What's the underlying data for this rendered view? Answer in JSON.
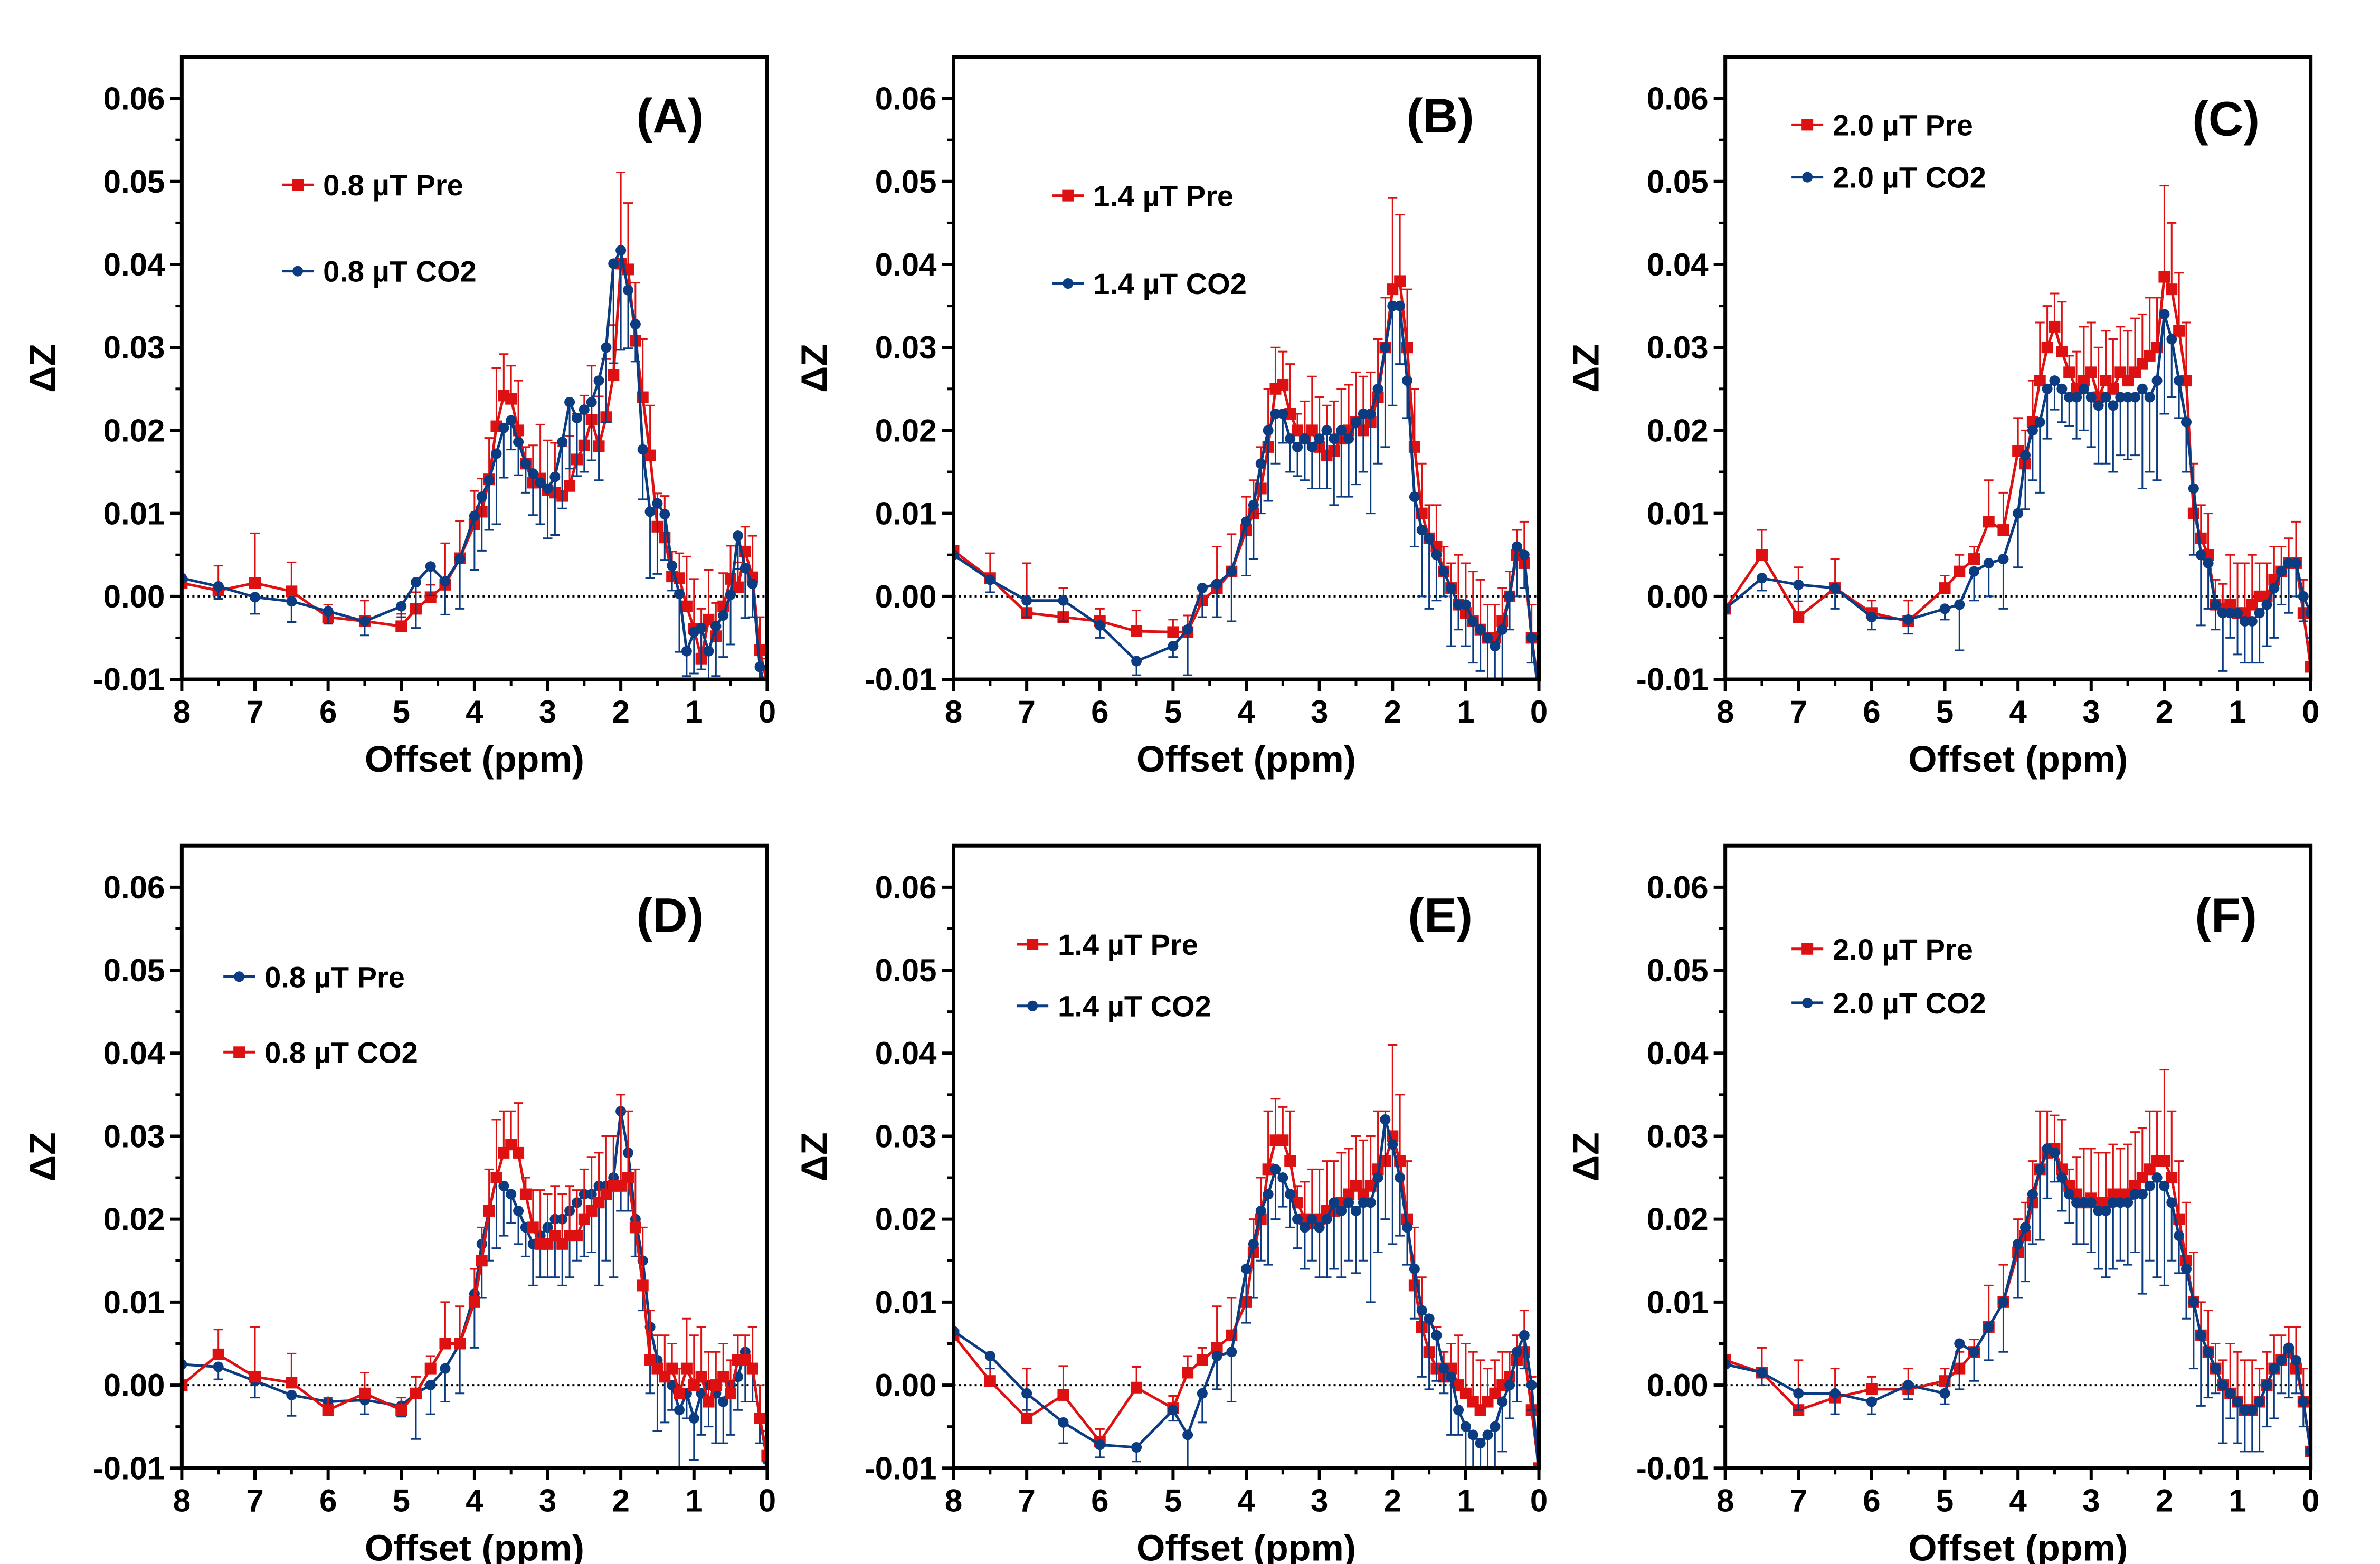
{
  "chart_data": [
    {
      "type": "line",
      "panel_label": "(A)",
      "xlabel": "Offset (ppm)",
      "ylabel": "ΔZ",
      "xlim": [
        8,
        0
      ],
      "ylim": [
        -0.01,
        0.065
      ],
      "x_ticks": [
        "8",
        "7",
        "6",
        "5",
        "4",
        "3",
        "2",
        "1",
        "0"
      ],
      "y_ticks": [
        "0.06",
        "0.05",
        "0.04",
        "0.03",
        "0.02",
        "0.01",
        "0.00",
        "-0.01"
      ],
      "zero_line": "dotted",
      "grid": false,
      "series": [
        {
          "name": "0.8 µT Pre",
          "color": "#dd1111",
          "marker": "square",
          "error_direction": "up",
          "y": [
            0.0016,
            0.0007,
            0.0016,
            0.0006,
            -0.0025,
            -0.003,
            -0.0036,
            -0.0015,
            -0.0001,
            0.0014,
            0.0046,
            0.0087,
            0.0102,
            0.0141,
            0.0205,
            0.0242,
            0.0238,
            0.02,
            0.016,
            0.0137,
            0.0142,
            0.0128,
            0.0125,
            0.0121,
            0.0133,
            0.0165,
            0.0182,
            0.0213,
            0.0181,
            0.0216,
            0.0267,
            0.0401,
            0.0394,
            0.0308,
            0.024,
            0.017,
            0.0084,
            0.0071,
            0.0024,
            0.0022,
            -0.0012,
            -0.0039,
            -0.0075,
            -0.0028,
            -0.0048,
            -0.0012,
            0.0021,
            0.0011,
            0.0054,
            0.0023,
            -0.0065,
            -0.0105
          ]
        },
        {
          "name": "0.8 µT CO2",
          "color": "#0b3c82",
          "marker": "circle",
          "error_direction": "down",
          "y": [
            0.0022,
            0.0012,
            -0.0001,
            -0.0006,
            -0.0018,
            -0.003,
            -0.0012,
            0.0017,
            0.0036,
            0.0018,
            0.0045,
            0.0097,
            0.012,
            0.014,
            0.0172,
            0.0203,
            0.0212,
            0.0186,
            0.016,
            0.0148,
            0.0137,
            0.013,
            0.0144,
            0.0186,
            0.0234,
            0.0215,
            0.0225,
            0.0234,
            0.026,
            0.03,
            0.0401,
            0.0417,
            0.0369,
            0.0328,
            0.0177,
            0.0102,
            0.0112,
            0.0099,
            0.0037,
            0.0003,
            -0.0066,
            -0.0043,
            -0.0038,
            -0.0066,
            -0.0036,
            -0.0023,
            0.0002,
            0.0073,
            0.0034,
            0.0015,
            -0.0085,
            -0.012
          ]
        }
      ]
    },
    {
      "type": "line",
      "panel_label": "(B)",
      "xlabel": "Offset (ppm)",
      "ylabel": "ΔZ",
      "xlim": [
        8,
        0
      ],
      "ylim": [
        -0.01,
        0.065
      ],
      "x_ticks": [
        "8",
        "7",
        "6",
        "5",
        "4",
        "3",
        "2",
        "1",
        "0"
      ],
      "y_ticks": [
        "0.06",
        "0.05",
        "0.04",
        "0.03",
        "0.02",
        "0.01",
        "0.00",
        "-0.01"
      ],
      "zero_line": "dotted",
      "grid": false,
      "series": [
        {
          "name": "1.4 µT Pre",
          "color": "#dd1111",
          "marker": "square",
          "error_direction": "up",
          "y": [
            0.0055,
            0.0022,
            -0.002,
            -0.0025,
            -0.003,
            -0.0042,
            -0.0043,
            -0.0043,
            -0.0005,
            0.001,
            0.003,
            0.008,
            0.01,
            0.013,
            0.018,
            0.025,
            0.0255,
            0.022,
            0.02,
            0.019,
            0.02,
            0.018,
            0.017,
            0.0175,
            0.019,
            0.02,
            0.021,
            0.02,
            0.021,
            0.024,
            0.03,
            0.037,
            0.038,
            0.03,
            0.018,
            0.01,
            0.007,
            0.006,
            0.003,
            0.001,
            -0.001,
            -0.002,
            -0.003,
            -0.004,
            -0.005,
            -0.005,
            -0.003,
            0.0,
            0.005,
            0.004,
            -0.005,
            -0.011
          ]
        },
        {
          "name": "1.4 µT CO2",
          "color": "#0b3c82",
          "marker": "circle",
          "error_direction": "down",
          "y": [
            0.005,
            0.002,
            -0.0005,
            -0.0005,
            -0.0035,
            -0.0078,
            -0.006,
            -0.004,
            0.001,
            0.0015,
            0.003,
            0.009,
            0.011,
            0.016,
            0.02,
            0.022,
            0.022,
            0.019,
            0.018,
            0.019,
            0.018,
            0.019,
            0.02,
            0.019,
            0.02,
            0.019,
            0.021,
            0.022,
            0.022,
            0.025,
            0.03,
            0.035,
            0.035,
            0.026,
            0.012,
            0.008,
            0.007,
            0.005,
            0.003,
            0.001,
            -0.001,
            -0.001,
            -0.003,
            -0.004,
            -0.005,
            -0.006,
            -0.004,
            0.0,
            0.006,
            0.005,
            -0.005,
            -0.012
          ]
        }
      ]
    },
    {
      "type": "line",
      "panel_label": "(C)",
      "xlabel": "Offset (ppm)",
      "ylabel": "ΔZ",
      "xlim": [
        8,
        0
      ],
      "ylim": [
        -0.01,
        0.065
      ],
      "x_ticks": [
        "8",
        "7",
        "6",
        "5",
        "4",
        "3",
        "2",
        "1",
        "0"
      ],
      "y_ticks": [
        "0.06",
        "0.05",
        "0.04",
        "0.03",
        "0.02",
        "0.01",
        "0.00",
        "-0.01"
      ],
      "zero_line": "dotted",
      "grid": false,
      "series": [
        {
          "name": "2.0 µT Pre",
          "color": "#dd1111",
          "marker": "square",
          "error_direction": "up",
          "y": [
            -0.0015,
            0.005,
            -0.0025,
            0.001,
            -0.002,
            -0.003,
            0.001,
            0.003,
            0.0045,
            0.009,
            0.008,
            0.0175,
            0.016,
            0.021,
            0.026,
            0.03,
            0.0325,
            0.0295,
            0.027,
            0.025,
            0.026,
            0.027,
            0.024,
            0.026,
            0.025,
            0.027,
            0.026,
            0.027,
            0.028,
            0.029,
            0.03,
            0.0385,
            0.037,
            0.032,
            0.026,
            0.01,
            0.007,
            0.005,
            -0.001,
            -0.0015,
            -0.001,
            -0.002,
            -0.002,
            -0.001,
            0.0,
            0.0,
            0.002,
            0.003,
            0.004,
            0.004,
            -0.002,
            -0.0085
          ]
        },
        {
          "name": "2.0 µT CO2",
          "color": "#0b3c82",
          "marker": "circle",
          "error_direction": "down",
          "y": [
            -0.0015,
            0.0022,
            0.0014,
            0.001,
            -0.0025,
            -0.0028,
            -0.0015,
            -0.001,
            0.003,
            0.004,
            0.0045,
            0.01,
            0.017,
            0.02,
            0.021,
            0.025,
            0.026,
            0.025,
            0.024,
            0.024,
            0.025,
            0.024,
            0.023,
            0.024,
            0.023,
            0.024,
            0.024,
            0.024,
            0.025,
            0.024,
            0.026,
            0.034,
            0.031,
            0.026,
            0.021,
            0.013,
            0.005,
            0.004,
            -0.001,
            -0.002,
            -0.002,
            -0.002,
            -0.003,
            -0.003,
            -0.002,
            -0.001,
            0.001,
            0.003,
            0.004,
            0.004,
            0.0,
            -0.002
          ]
        }
      ]
    },
    {
      "type": "line",
      "panel_label": "(D)",
      "xlabel": "Offset (ppm)",
      "ylabel": "ΔZ",
      "xlim": [
        8,
        0
      ],
      "ylim": [
        -0.01,
        0.065
      ],
      "x_ticks": [
        "8",
        "7",
        "6",
        "5",
        "4",
        "3",
        "2",
        "1",
        "0"
      ],
      "y_ticks": [
        "0.06",
        "0.05",
        "0.04",
        "0.03",
        "0.02",
        "0.01",
        "0.00",
        "-0.01"
      ],
      "zero_line": "dotted",
      "grid": false,
      "series": [
        {
          "name": "0.8 µT Pre",
          "color": "#0b3c82",
          "marker": "circle",
          "error_direction": "down",
          "y": [
            0.0025,
            0.0022,
            0.0005,
            -0.0012,
            -0.002,
            -0.0018,
            -0.0025,
            -0.001,
            0.0,
            0.002,
            0.005,
            0.011,
            0.017,
            0.021,
            0.025,
            0.024,
            0.023,
            0.021,
            0.019,
            0.017,
            0.018,
            0.019,
            0.02,
            0.02,
            0.021,
            0.022,
            0.023,
            0.023,
            0.024,
            0.024,
            0.025,
            0.033,
            0.028,
            0.02,
            0.015,
            0.007,
            0.003,
            0.001,
            0.0,
            -0.003,
            -0.001,
            -0.004,
            -0.001,
            0.0,
            -0.001,
            -0.002,
            0.0,
            0.001,
            0.004,
            0.002,
            -0.004,
            -0.009
          ]
        },
        {
          "name": "0.8 µT CO2",
          "color": "#dd1111",
          "marker": "square",
          "error_direction": "up",
          "y": [
            0.0,
            0.0037,
            0.001,
            0.0003,
            -0.003,
            -0.001,
            -0.003,
            -0.001,
            0.002,
            0.005,
            0.005,
            0.01,
            0.015,
            0.021,
            0.025,
            0.028,
            0.029,
            0.028,
            0.023,
            0.019,
            0.017,
            0.017,
            0.018,
            0.017,
            0.018,
            0.018,
            0.02,
            0.021,
            0.022,
            0.023,
            0.024,
            0.024,
            0.025,
            0.019,
            0.012,
            0.003,
            0.002,
            0.001,
            0.002,
            -0.001,
            0.002,
            0.0,
            0.001,
            -0.002,
            0.0,
            0.001,
            -0.001,
            0.003,
            0.003,
            0.002,
            -0.004,
            -0.0085
          ]
        }
      ]
    },
    {
      "type": "line",
      "panel_label": "(E)",
      "xlabel": "Offset (ppm)",
      "ylabel": "ΔZ",
      "xlim": [
        8,
        0
      ],
      "ylim": [
        -0.01,
        0.065
      ],
      "x_ticks": [
        "8",
        "7",
        "6",
        "5",
        "4",
        "3",
        "2",
        "1",
        "0"
      ],
      "y_ticks": [
        "0.06",
        "0.05",
        "0.04",
        "0.03",
        "0.02",
        "0.01",
        "0.00",
        "-0.01"
      ],
      "zero_line": "dotted",
      "grid": false,
      "series": [
        {
          "name": "1.4 µT Pre",
          "color": "#dd1111",
          "marker": "square",
          "error_direction": "up",
          "y": [
            0.006,
            0.0005,
            -0.004,
            -0.0012,
            -0.0068,
            -0.0003,
            -0.0028,
            0.0015,
            0.003,
            0.0045,
            0.006,
            0.01,
            0.016,
            0.02,
            0.026,
            0.0295,
            0.0295,
            0.027,
            0.022,
            0.02,
            0.0195,
            0.02,
            0.021,
            0.021,
            0.022,
            0.023,
            0.024,
            0.023,
            0.024,
            0.026,
            0.027,
            0.03,
            0.027,
            0.02,
            0.012,
            0.007,
            0.004,
            0.002,
            0.001,
            0.002,
            0.0,
            -0.001,
            -0.002,
            -0.003,
            -0.002,
            -0.001,
            0.0,
            0.001,
            0.003,
            0.004,
            -0.003,
            -0.01
          ]
        },
        {
          "name": "1.4 µT CO2",
          "color": "#0b3c82",
          "marker": "circle",
          "error_direction": "down",
          "y": [
            0.0065,
            0.0035,
            -0.001,
            -0.0045,
            -0.0072,
            -0.0075,
            -0.003,
            -0.006,
            -0.001,
            0.0035,
            0.004,
            0.014,
            0.017,
            0.021,
            0.023,
            0.026,
            0.025,
            0.023,
            0.02,
            0.019,
            0.02,
            0.019,
            0.02,
            0.022,
            0.021,
            0.022,
            0.021,
            0.022,
            0.022,
            0.025,
            0.032,
            0.029,
            0.025,
            0.019,
            0.014,
            0.009,
            0.008,
            0.006,
            0.002,
            0.001,
            -0.003,
            -0.005,
            -0.006,
            -0.007,
            -0.006,
            -0.005,
            -0.002,
            0.0,
            0.004,
            0.006,
            0.0,
            -0.011
          ]
        }
      ]
    },
    {
      "type": "line",
      "panel_label": "(F)",
      "xlabel": "Offset (ppm)",
      "ylabel": "ΔZ",
      "xlim": [
        8,
        0
      ],
      "ylim": [
        -0.01,
        0.065
      ],
      "x_ticks": [
        "8",
        "7",
        "6",
        "5",
        "4",
        "3",
        "2",
        "1",
        "0"
      ],
      "y_ticks": [
        "0.06",
        "0.05",
        "0.04",
        "0.03",
        "0.02",
        "0.01",
        "0.00",
        "-0.01"
      ],
      "zero_line": "dotted",
      "grid": false,
      "series": [
        {
          "name": "2.0 µT Pre",
          "color": "#dd1111",
          "marker": "square",
          "error_direction": "up",
          "y": [
            0.003,
            0.0015,
            -0.003,
            -0.0015,
            -0.0005,
            -0.0005,
            0.0005,
            0.002,
            0.004,
            0.007,
            0.01,
            0.016,
            0.018,
            0.022,
            0.026,
            0.028,
            0.0285,
            0.026,
            0.024,
            0.023,
            0.022,
            0.0225,
            0.022,
            0.022,
            0.023,
            0.023,
            0.023,
            0.024,
            0.025,
            0.026,
            0.027,
            0.027,
            0.025,
            0.02,
            0.015,
            0.01,
            0.006,
            0.004,
            0.002,
            0.0,
            -0.001,
            -0.002,
            -0.003,
            -0.003,
            -0.002,
            0.0,
            0.002,
            0.003,
            0.004,
            0.002,
            -0.002,
            -0.008
          ]
        },
        {
          "name": "2.0 µT CO2",
          "color": "#0b3c82",
          "marker": "circle",
          "error_direction": "down",
          "y": [
            0.0025,
            0.0015,
            -0.001,
            -0.001,
            -0.002,
            0.0,
            -0.001,
            0.005,
            0.004,
            0.007,
            0.01,
            0.017,
            0.019,
            0.023,
            0.026,
            0.0285,
            0.028,
            0.025,
            0.023,
            0.022,
            0.022,
            0.022,
            0.021,
            0.021,
            0.022,
            0.022,
            0.022,
            0.023,
            0.023,
            0.024,
            0.025,
            0.024,
            0.022,
            0.018,
            0.014,
            0.01,
            0.006,
            0.004,
            0.002,
            0.0,
            -0.001,
            -0.002,
            -0.003,
            -0.003,
            -0.002,
            0.0,
            0.002,
            0.003,
            0.0045,
            0.003,
            -0.002,
            -0.008
          ]
        }
      ]
    }
  ],
  "offsets_ppm": [
    8,
    7.5,
    7,
    6.5,
    6,
    5.5,
    5,
    4.8,
    4.6,
    4.4,
    4.2,
    4.0,
    3.9,
    3.8,
    3.7,
    3.6,
    3.5,
    3.4,
    3.3,
    3.2,
    3.1,
    3.0,
    2.9,
    2.8,
    2.7,
    2.6,
    2.5,
    2.4,
    2.3,
    2.2,
    2.1,
    2.0,
    1.9,
    1.8,
    1.7,
    1.6,
    1.5,
    1.4,
    1.3,
    1.2,
    1.1,
    1.0,
    0.9,
    0.8,
    0.7,
    0.6,
    0.5,
    0.4,
    0.3,
    0.2,
    0.1,
    0
  ],
  "error_up": [
    0,
    0.003,
    0.006,
    0.0035,
    0.0015,
    0.0025,
    0.0015,
    0.002,
    0.0015,
    0.005,
    0.0045,
    0.004,
    0.004,
    0.005,
    0.007,
    0.005,
    0.004,
    0.006,
    0.002,
    0.0045,
    0.0065,
    0.006,
    0.006,
    0.006,
    0.006,
    0.0055,
    0.006,
    0.0065,
    0.006,
    0.007,
    0.006,
    0.011,
    0.008,
    0.007,
    0.007,
    0.006,
    0.004,
    0.005,
    0.003,
    0.003,
    0.006,
    0.006,
    0.006,
    0.006,
    0.004,
    0.004,
    0.004,
    0.003,
    0.003,
    0.005,
    0.004,
    0.003
  ],
  "error_down": [
    0,
    0.0015,
    0.002,
    0.0025,
    0.0015,
    0.0017,
    0.0013,
    0.0055,
    0.0035,
    0.004,
    0.006,
    0.0065,
    0.0065,
    0.006,
    0.0085,
    0.006,
    0.0035,
    0.004,
    0.0035,
    0.005,
    0.005,
    0.006,
    0.007,
    0.008,
    0.008,
    0.007,
    0.0075,
    0.007,
    0.012,
    0.009,
    0.012,
    0.012,
    0.007,
    0.0045,
    0.006,
    0.008,
    0.0085,
    0.0055,
    0.003,
    0.007,
    0.003,
    0.005,
    0.005,
    0.005,
    0.006,
    0.005,
    0.006,
    0.004,
    0.006,
    0.004,
    0.003,
    0.003
  ]
}
